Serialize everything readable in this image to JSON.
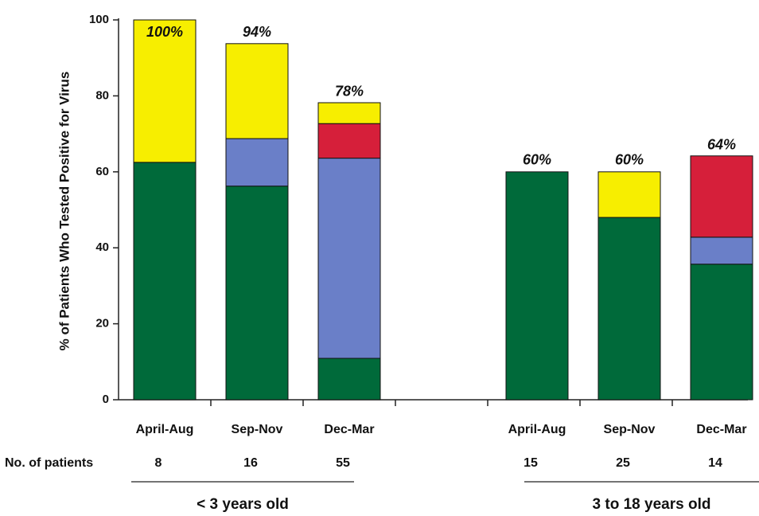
{
  "chart_data": {
    "type": "stacked_bar",
    "y_label": "% of Patients Who Tested Positive for Virus",
    "categories": [
      "April-Aug",
      "Sep-Nov",
      "Dec-Mar",
      "April-Aug",
      "Sep-Nov",
      "Dec-Mar"
    ],
    "series": [
      {
        "color": "#006a3a",
        "values": [
          62.5,
          56.25,
          10.9,
          60,
          48,
          35.7
        ]
      },
      {
        "color": "#6a7fc8",
        "values": [
          0,
          12.5,
          52.7,
          0,
          0,
          7.1
        ]
      },
      {
        "color": "#d61f3a",
        "values": [
          0,
          0,
          9.1,
          0,
          0,
          21.4
        ]
      },
      {
        "color": "#f7ee00",
        "values": [
          37.5,
          25,
          5.5,
          0,
          12,
          0
        ]
      }
    ],
    "totals": [
      100,
      94,
      78,
      60,
      60,
      64
    ],
    "total_labels": [
      "100%",
      "94%",
      "78%",
      "60%",
      "60%",
      "64%"
    ],
    "patients_label": "No. of patients",
    "patients": [
      8,
      16,
      55,
      15,
      25,
      14
    ],
    "groups": [
      {
        "label": "< 3 years old",
        "size": 3
      },
      {
        "label": "3 to 18 years old",
        "size": 3
      }
    ],
    "ylim": [
      0,
      100
    ],
    "yticks": [
      0,
      20,
      40,
      60,
      80,
      100
    ]
  }
}
